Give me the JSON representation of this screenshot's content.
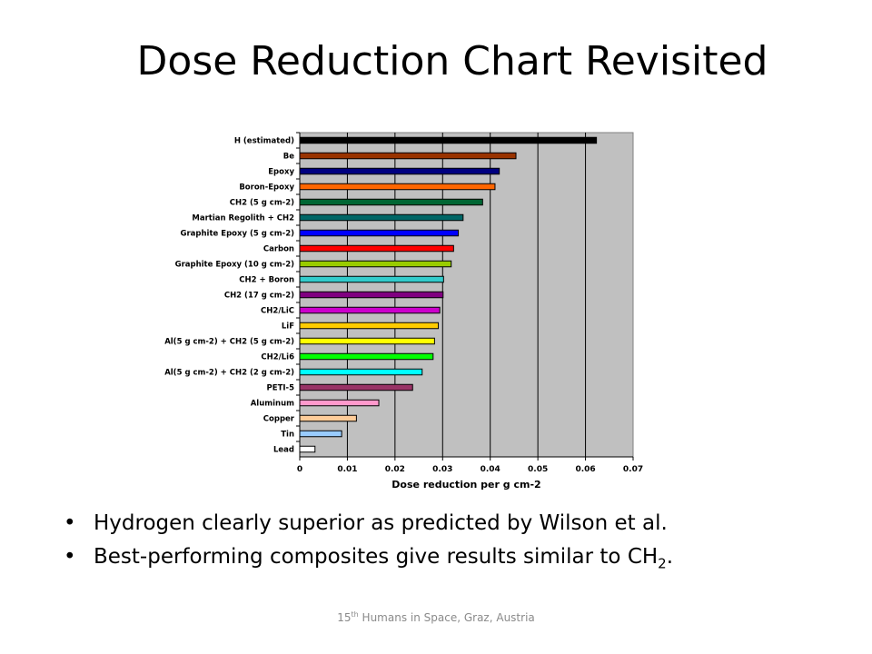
{
  "title": "Dose Reduction Chart Revisited",
  "chart_data": {
    "type": "bar",
    "orientation": "horizontal",
    "categories": [
      "H (estimated)",
      "Be",
      "Epoxy",
      "Boron-Epoxy",
      "CH2 (5 g cm-2)",
      "Martian Regolith + CH2",
      "Graphite Epoxy (5 g cm-2)",
      "Carbon",
      "Graphite Epoxy (10 g cm-2)",
      "CH2 + Boron",
      "CH2 (17 g cm-2)",
      "CH2/LiC",
      "LiF",
      "Al(5 g cm-2) + CH2 (5 g cm-2)",
      "CH2/Li6",
      "Al(5 g cm-2) + CH2 (2 g cm-2)",
      "PETI-5",
      "Aluminum",
      "Copper",
      "Tin",
      "Lead"
    ],
    "values": [
      0.0623,
      0.0454,
      0.0419,
      0.041,
      0.0384,
      0.0343,
      0.0333,
      0.0323,
      0.0318,
      0.0302,
      0.0301,
      0.0294,
      0.0291,
      0.0283,
      0.028,
      0.0257,
      0.0237,
      0.0166,
      0.0119,
      0.0088,
      0.0032
    ],
    "colors": [
      "#000000",
      "#993300",
      "#000080",
      "#ff6600",
      "#006633",
      "#006666",
      "#0000ff",
      "#ff0000",
      "#99cc00",
      "#33cccc",
      "#800080",
      "#cc00cc",
      "#ffcc00",
      "#ffff00",
      "#00ff00",
      "#00ffff",
      "#993366",
      "#ff99cc",
      "#ffcc99",
      "#99ccff",
      "#ffffff"
    ],
    "xlim": [
      0,
      0.07
    ],
    "xticks": [
      "0",
      "0.01",
      "0.02",
      "0.03",
      "0.04",
      "0.05",
      "0.06",
      "0.07"
    ],
    "xlabel": "Dose reduction per g cm-2",
    "ylabel": "",
    "plot_background": "#c0c0c0",
    "grid": "vertical"
  },
  "bullets": [
    {
      "symbol": "•",
      "text": "Hydrogen clearly superior as predicted by Wilson et al."
    },
    {
      "symbol": "•",
      "text_before": "Best-performing composites give results similar to CH",
      "sub": "2",
      "text_after": "."
    }
  ],
  "footer": {
    "prefix": "15",
    "sup": "th",
    "suffix": " Humans in Space, Graz, Austria"
  }
}
